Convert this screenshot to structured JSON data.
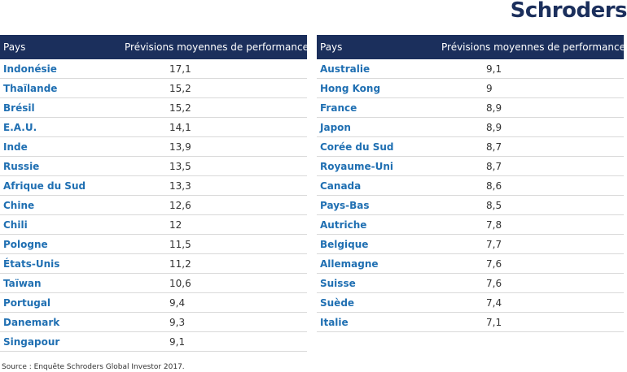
{
  "logo": "Schroders",
  "headers": {
    "country": "Pays",
    "value": "Prévisions moyennes de performance"
  },
  "left_rows": [
    {
      "country": "Indonésie",
      "value": "17,1"
    },
    {
      "country": "Thaïlande",
      "value": "15,2"
    },
    {
      "country": "Brésil",
      "value": "15,2"
    },
    {
      "country": "E.A.U.",
      "value": "14,1"
    },
    {
      "country": "Inde",
      "value": "13,9"
    },
    {
      "country": "Russie",
      "value": "13,5"
    },
    {
      "country": "Afrique du Sud",
      "value": "13,3"
    },
    {
      "country": "Chine",
      "value": "12,6"
    },
    {
      "country": "Chili",
      "value": "12"
    },
    {
      "country": "Pologne",
      "value": "11,5"
    },
    {
      "country": "États-Unis",
      "value": "11,2"
    },
    {
      "country": "Taïwan",
      "value": "10,6"
    },
    {
      "country": "Portugal",
      "value": "9,4"
    },
    {
      "country": "Danemark",
      "value": "9,3"
    },
    {
      "country": "Singapour",
      "value": "9,1"
    }
  ],
  "right_rows": [
    {
      "country": "Australie",
      "value": "9,1"
    },
    {
      "country": "Hong Kong",
      "value": "9"
    },
    {
      "country": "France",
      "value": "8,9"
    },
    {
      "country": "Japon",
      "value": "8,9"
    },
    {
      "country": "Corée du Sud",
      "value": "8,7"
    },
    {
      "country": "Royaume-Uni",
      "value": "8,7"
    },
    {
      "country": "Canada",
      "value": "8,6"
    },
    {
      "country": "Pays-Bas",
      "value": "8,5"
    },
    {
      "country": "Autriche",
      "value": "7,8"
    },
    {
      "country": "Belgique",
      "value": "7,7"
    },
    {
      "country": "Allemagne",
      "value": "7,6"
    },
    {
      "country": "Suisse",
      "value": "7,6"
    },
    {
      "country": "Suède",
      "value": "7,4"
    },
    {
      "country": "Italie",
      "value": "7,1"
    }
  ],
  "source": "Source : Enquête Schroders Global Investor 2017.",
  "colors": {
    "header_bg": "#1b2f5c",
    "country_text": "#1f6fb2",
    "logo": "#1b2f5c"
  }
}
